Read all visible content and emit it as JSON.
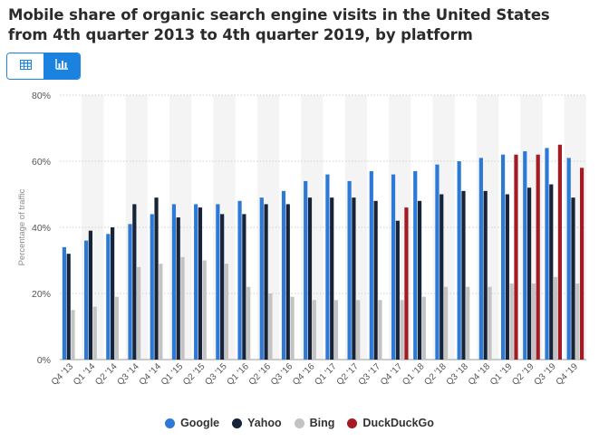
{
  "header": {
    "title": "Mobile share of organic search engine visits in the United States from 4th quarter 2013 to 4th quarter 2019, by platform"
  },
  "view_toggle": {
    "table_icon": "table-icon",
    "chart_icon": "bar-chart-icon",
    "active": "chart"
  },
  "colors": {
    "accent": "#1c82e0",
    "google": "#2c79d6",
    "yahoo": "#162338",
    "bing": "#c3c3c3",
    "duckduckgo": "#a31c23",
    "band": "#f4f4f4",
    "grid": "#cfcfcf"
  },
  "chart_data": {
    "type": "bar",
    "title": "Mobile share of organic search engine visits in the United States from 4th quarter 2013 to 4th quarter 2019, by platform",
    "xlabel": "",
    "ylabel": "Percentage of traffic",
    "ylim": [
      0,
      80
    ],
    "yticks": [
      "0%",
      "20%",
      "40%",
      "60%",
      "80%"
    ],
    "ytick_values": [
      0,
      20,
      40,
      60,
      80
    ],
    "grid": true,
    "legend_position": "bottom-center",
    "categories": [
      "Q4 '13",
      "Q1 '14",
      "Q2 '14",
      "Q3 '14",
      "Q4 '14",
      "Q1 '15",
      "Q2 '15",
      "Q3 '15",
      "Q1 '16",
      "Q2 '16",
      "Q3 '16",
      "Q4 '16",
      "Q1 '17",
      "Q2 '17",
      "Q3 '17",
      "Q4 '17",
      "Q1 '18",
      "Q2 '18",
      "Q3 '18",
      "Q4 '18",
      "Q1 '19",
      "Q2 '19",
      "Q3 '19",
      "Q4 '19"
    ],
    "series": [
      {
        "name": "Google",
        "color": "#2c79d6",
        "values": [
          34,
          36,
          38,
          41,
          44,
          47,
          47,
          47,
          48,
          49,
          51,
          54,
          56,
          54,
          57,
          56,
          57,
          59,
          60,
          61,
          62,
          63,
          64,
          61
        ]
      },
      {
        "name": "Yahoo",
        "color": "#162338",
        "values": [
          32,
          39,
          40,
          47,
          49,
          43,
          46,
          44,
          44,
          47,
          47,
          49,
          49,
          49,
          48,
          42,
          48,
          50,
          51,
          51,
          50,
          52,
          53,
          49
        ]
      },
      {
        "name": "Bing",
        "color": "#c3c3c3",
        "values": [
          15,
          16,
          19,
          28,
          29,
          31,
          30,
          29,
          22,
          20,
          19,
          18,
          18,
          18,
          18,
          18,
          19,
          22,
          22,
          22,
          23,
          23,
          25,
          23
        ]
      },
      {
        "name": "DuckDuckGo",
        "color": "#a31c23",
        "values": [
          null,
          null,
          null,
          null,
          null,
          null,
          null,
          null,
          null,
          null,
          null,
          null,
          null,
          null,
          null,
          46,
          null,
          null,
          null,
          null,
          62,
          62,
          65,
          58
        ]
      }
    ]
  }
}
